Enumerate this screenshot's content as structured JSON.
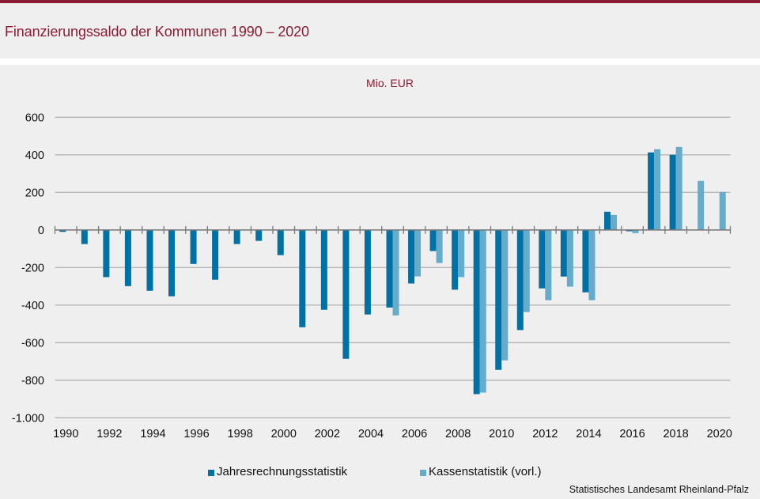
{
  "header": {
    "title": "Finanzierungssaldo der Kommunen 1990 – 2020"
  },
  "colors": {
    "brand": "#8b1c33",
    "background": "#eeefee",
    "series_dark": "#0071a4",
    "series_light": "#66abca",
    "gridline": "#b4b4b4",
    "axis": "#7a7a7a"
  },
  "chart_data": {
    "type": "bar",
    "title": "Finanzierungssaldo der Kommunen 1990 – 2020",
    "unit_label": "Mio. EUR",
    "xlabel": "",
    "ylabel": "Mio. EUR",
    "ylim": [
      -1000,
      600
    ],
    "yticks": [
      600,
      400,
      200,
      0,
      -200,
      -400,
      -600,
      -800,
      -1000
    ],
    "ytick_labels": [
      "600",
      "400",
      "200",
      "0",
      "-200",
      "-400",
      "-600",
      "-800",
      "-1.000"
    ],
    "grid": true,
    "categories": [
      "1990",
      "1991",
      "1992",
      "1993",
      "1994",
      "1995",
      "1996",
      "1997",
      "1998",
      "1999",
      "2000",
      "2001",
      "2002",
      "2003",
      "2004",
      "2005",
      "2006",
      "2007",
      "2008",
      "2009",
      "2010",
      "2011",
      "2012",
      "2013",
      "2014",
      "2015",
      "2016",
      "2017",
      "2018",
      "2019",
      "2020"
    ],
    "xtick_labels": [
      "1990",
      "1992",
      "1994",
      "1996",
      "1998",
      "2000",
      "2002",
      "2004",
      "2006",
      "2008",
      "2010",
      "2012",
      "2014",
      "2016",
      "2018",
      "2020"
    ],
    "series": [
      {
        "name": "Jahresrechnungsstatistik",
        "color": "#0071a4",
        "values": [
          -10,
          -75,
          -251,
          -299,
          -324,
          -353,
          -181,
          -265,
          -75,
          -58,
          -134,
          -518,
          -425,
          -686,
          -450,
          -413,
          -285,
          -112,
          -318,
          -874,
          -745,
          -533,
          -311,
          -248,
          -332,
          97,
          -7,
          413,
          400,
          null,
          null
        ]
      },
      {
        "name": "Kassenstatistik (vorl.)",
        "color": "#66abca",
        "values": [
          null,
          null,
          null,
          null,
          null,
          null,
          null,
          null,
          null,
          null,
          null,
          null,
          null,
          null,
          null,
          -455,
          -247,
          -176,
          -251,
          -866,
          -694,
          -437,
          -374,
          -302,
          -374,
          80,
          -17,
          430,
          442,
          261,
          202
        ]
      }
    ],
    "legend": {
      "placement": "bottom",
      "entries": [
        "Jahresrechnungsstatistik",
        "Kassenstatistik (vorl.)"
      ]
    },
    "source": "Statistisches Landesamt Rheinland-Pfalz"
  }
}
